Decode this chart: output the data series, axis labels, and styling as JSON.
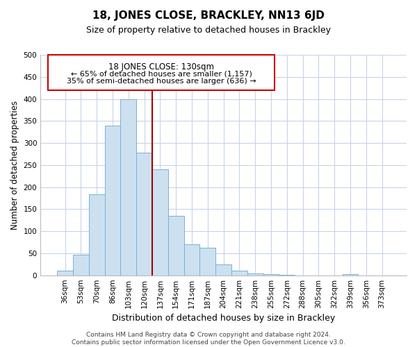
{
  "title": "18, JONES CLOSE, BRACKLEY, NN13 6JD",
  "subtitle": "Size of property relative to detached houses in Brackley",
  "xlabel": "Distribution of detached houses by size in Brackley",
  "ylabel": "Number of detached properties",
  "bar_values": [
    10,
    47,
    183,
    340,
    400,
    278,
    240,
    135,
    70,
    62,
    25,
    10,
    5,
    2,
    1,
    0,
    0,
    0,
    2,
    0,
    0
  ],
  "bar_labels": [
    "36sqm",
    "53sqm",
    "70sqm",
    "86sqm",
    "103sqm",
    "120sqm",
    "137sqm",
    "154sqm",
    "171sqm",
    "187sqm",
    "204sqm",
    "221sqm",
    "238sqm",
    "255sqm",
    "272sqm",
    "288sqm",
    "305sqm",
    "322sqm",
    "339sqm",
    "356sqm",
    "373sqm"
  ],
  "bar_color": "#cce0f0",
  "bar_edge_color": "#7ab0d4",
  "vline_color": "#aa0000",
  "annotation_box_edge_color": "#cc0000",
  "annotation_lines": [
    "18 JONES CLOSE: 130sqm",
    "← 65% of detached houses are smaller (1,157)",
    "35% of semi-detached houses are larger (636) →"
  ],
  "ylim": [
    0,
    500
  ],
  "yticks": [
    0,
    50,
    100,
    150,
    200,
    250,
    300,
    350,
    400,
    450,
    500
  ],
  "footer_line1": "Contains HM Land Registry data © Crown copyright and database right 2024.",
  "footer_line2": "Contains public sector information licensed under the Open Government Licence v3.0.",
  "background_color": "#ffffff",
  "grid_color": "#c8d4e8"
}
